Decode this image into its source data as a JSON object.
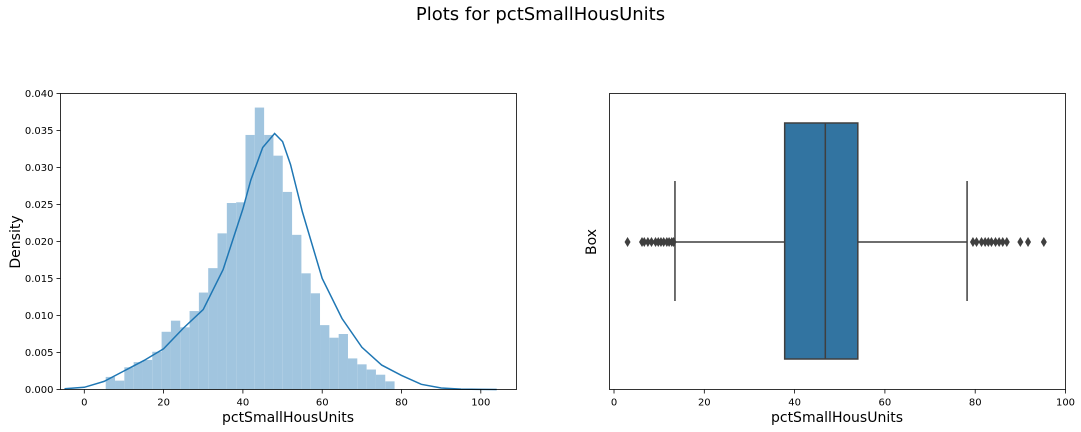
{
  "figure": {
    "suptitle": "Plots for pctSmallHousUnits"
  },
  "chart_data": [
    {
      "type": "histogram",
      "xlabel": "pctSmallHousUnits",
      "ylabel": "Density",
      "xlim": [
        -6,
        109
      ],
      "ylim": [
        0,
        0.04
      ],
      "xticks": [
        "0",
        "20",
        "40",
        "60",
        "80",
        "100"
      ],
      "yticks": [
        "0.000",
        "0.005",
        "0.010",
        "0.015",
        "0.020",
        "0.025",
        "0.030",
        "0.035",
        "0.040"
      ],
      "bin_width": 2.35,
      "bin_edges_start": 5.4,
      "densities": [
        0.0017,
        0.0012,
        0.003,
        0.0037,
        0.004,
        0.0051,
        0.0078,
        0.0093,
        0.0084,
        0.0106,
        0.0131,
        0.0164,
        0.0211,
        0.0252,
        0.0253,
        0.0344,
        0.0381,
        0.0344,
        0.0316,
        0.0267,
        0.0209,
        0.0157,
        0.013,
        0.0087,
        0.007,
        0.0075,
        0.0042,
        0.0034,
        0.0027,
        0.002,
        0.0011
      ],
      "kde": {
        "x": [
          -5,
          0,
          5,
          10,
          15,
          20,
          25,
          30,
          35,
          40,
          42,
          45,
          48,
          50,
          52,
          55,
          60,
          65,
          70,
          75,
          80,
          85,
          90,
          95,
          100,
          104
        ],
        "y": [
          0.0001,
          0.0003,
          0.0011,
          0.0025,
          0.0039,
          0.0055,
          0.0083,
          0.0108,
          0.0162,
          0.0244,
          0.0283,
          0.0327,
          0.0346,
          0.0335,
          0.0304,
          0.024,
          0.015,
          0.0096,
          0.0057,
          0.0033,
          0.0019,
          0.0007,
          0.0002,
          5e-05,
          1e-05,
          0.0
        ]
      },
      "colors": {
        "bars": "#a1c5df",
        "kde": "#1f77b4"
      }
    },
    {
      "type": "boxplot",
      "xlabel": "pctSmallHousUnits",
      "ylabel": "Box",
      "xlim": [
        -1,
        100
      ],
      "xticks": [
        "0",
        "20",
        "40",
        "60",
        "80",
        "100"
      ],
      "whisker_low": 13.5,
      "q1": 37.8,
      "median": 46.8,
      "q3": 54.0,
      "whisker_high": 78.2,
      "outliers": [
        3.0,
        6.2,
        6.7,
        7.5,
        8.3,
        9.2,
        9.8,
        10.4,
        11.0,
        11.7,
        12.2,
        12.8,
        13.2,
        79.5,
        80.3,
        81.4,
        82.2,
        82.9,
        83.6,
        84.5,
        85.3,
        86.1,
        87.0,
        90.0,
        91.7,
        95.2
      ],
      "colors": {
        "box": "#3274a1",
        "lines": "#3f3f3f"
      }
    }
  ]
}
